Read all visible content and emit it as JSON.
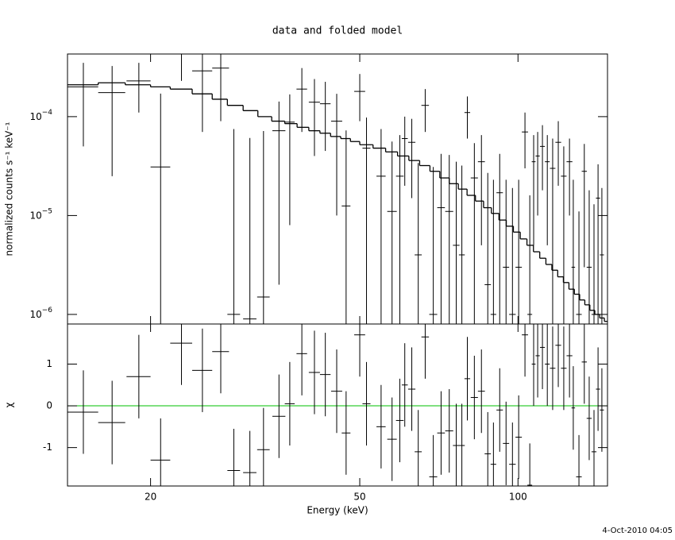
{
  "chart_data": [
    {
      "type": "errorbar",
      "title": "data and folded model",
      "ylabel": "normalized counts s⁻¹ keV⁻¹",
      "xscale": "log",
      "xlim": [
        13.9,
        148
      ],
      "yscale": "log",
      "ylim": [
        8e-07,
        0.00043
      ],
      "yticks": [
        {
          "value": 1e-06,
          "label": "10",
          "exponent": "−6"
        },
        {
          "value": 1e-05,
          "label": "10",
          "exponent": "−5"
        },
        {
          "value": 0.0001,
          "label": "10",
          "exponent": "−4"
        }
      ],
      "series": [
        {
          "color": "#000000",
          "x": [
            14.9,
            16.9,
            19.0,
            20.9,
            22.9,
            25.1,
            27.2,
            28.8,
            30.9,
            32.8,
            35.1,
            36.8,
            38.8,
            41.0,
            43.0,
            45.2,
            47.1,
            50.0,
            51.5,
            54.9,
            57.6,
            59.6,
            60.9,
            62.8,
            64.6,
            66.6,
            69.0,
            71.4,
            74.0,
            76.3,
            78.2,
            80.1,
            82.6,
            85.2,
            87.6,
            89.8,
            92.3,
            94.9,
            97.6,
            100.3,
            103.1,
            105.3,
            107.1,
            109.0,
            111.3,
            113.7,
            116.4,
            119.3,
            122.2,
            125.3,
            127.4,
            130.6,
            133.7,
            136.6,
            139.5,
            142.0,
            144.4
          ],
          "xerr": [
            1.0,
            1.0,
            1.0,
            0.9,
            1.1,
            1.1,
            1.0,
            0.8,
            0.9,
            0.9,
            1.0,
            0.8,
            0.9,
            1.0,
            1.0,
            1.1,
            0.9,
            1.2,
            0.9,
            1.1,
            1.2,
            1.0,
            0.8,
            1.0,
            1.0,
            1.1,
            1.2,
            1.2,
            1.3,
            1.1,
            1.0,
            1.0,
            1.3,
            1.3,
            1.2,
            1.1,
            1.3,
            1.3,
            1.4,
            1.4,
            1.4,
            1.1,
            0.9,
            1.0,
            1.2,
            1.2,
            1.4,
            1.5,
            1.5,
            1.6,
            1.0,
            1.6,
            1.5,
            1.5,
            1.5,
            1.3,
            1.3
          ],
          "values": [
            0.0002,
            0.000175,
            0.00023,
            3.1e-05,
            0.00043,
            0.00029,
            0.00031,
            1e-06,
            9e-07,
            1.5e-06,
            7.2e-05,
            8.8e-05,
            0.00019,
            0.00014,
            0.000135,
            9e-05,
            1.25e-05,
            0.00018,
            4.8e-05,
            2.5e-05,
            1.1e-05,
            2.5e-05,
            6e-05,
            5.5e-05,
            4e-06,
            0.00013,
            1e-06,
            1.2e-05,
            1.1e-05,
            5e-06,
            4e-06,
            0.00011,
            2.4e-05,
            3.5e-05,
            2e-06,
            1e-06,
            1.7e-05,
            3e-06,
            1e-06,
            3e-06,
            7e-05,
            1e-06,
            3.5e-05,
            4e-05,
            5e-05,
            3.5e-05,
            3e-05,
            5.5e-05,
            2.5e-05,
            3.5e-05,
            3e-06,
            1e-06,
            2.8e-05,
            3e-06,
            1e-06,
            1.5e-05,
            4e-06
          ],
          "errors": [
            0.00015,
            0.00015,
            0.00012,
            0.00014,
            0.0002,
            0.00022,
            0.00022,
            7.4e-05,
            6e-05,
            7e-05,
            7e-05,
            8e-05,
            0.00012,
            0.0001,
            9e-05,
            8e-05,
            6e-05,
            9e-05,
            5e-05,
            5e-05,
            4.5e-05,
            4e-05,
            4e-05,
            4e-05,
            3e-05,
            6e-05,
            3e-05,
            3e-05,
            3e-05,
            3e-05,
            2.8e-05,
            5e-05,
            3e-05,
            3e-05,
            2.5e-05,
            2.2e-05,
            2.5e-05,
            2e-05,
            1.8e-05,
            2e-05,
            4e-05,
            1.5e-05,
            3e-05,
            3e-05,
            3.2e-05,
            3e-05,
            3e-05,
            3.5e-05,
            2.5e-05,
            2.5e-05,
            2e-05,
            1e-05,
            2.5e-05,
            1.5e-05,
            1.2e-05,
            1.8e-05,
            1.5e-05
          ]
        }
      ],
      "model": {
        "color": "#000000",
        "bins": [
          13.9,
          15.9,
          17.9,
          20,
          21.8,
          24,
          26.2,
          28,
          30,
          32,
          34,
          36,
          38,
          40,
          42,
          44,
          46,
          48,
          50,
          53,
          56,
          59,
          62,
          65,
          68,
          71,
          74,
          77,
          80,
          83,
          86,
          89,
          92,
          95,
          98,
          101,
          104,
          107,
          110,
          113,
          116,
          119,
          122,
          125,
          128,
          131,
          134,
          137,
          140,
          143,
          146,
          148
        ],
        "values": [
          0.00021,
          0.00022,
          0.00021,
          0.0002,
          0.00019,
          0.00017,
          0.00015,
          0.00013,
          0.000115,
          0.0001,
          9e-05,
          8.5e-05,
          7.8e-05,
          7.2e-05,
          6.8e-05,
          6.3e-05,
          6e-05,
          5.6e-05,
          5.2e-05,
          4.8e-05,
          4.4e-05,
          4e-05,
          3.6e-05,
          3.2e-05,
          2.8e-05,
          2.4e-05,
          2.1e-05,
          1.85e-05,
          1.6e-05,
          1.4e-05,
          1.2e-05,
          1.05e-05,
          9e-06,
          7.8e-06,
          6.8e-06,
          5.8e-06,
          5e-06,
          4.3e-06,
          3.7e-06,
          3.2e-06,
          2.8e-06,
          2.4e-06,
          2.1e-06,
          1.8e-06,
          1.6e-06,
          1.4e-06,
          1.25e-06,
          1.1e-06,
          1e-06,
          9.2e-07,
          8.5e-07
        ]
      }
    },
    {
      "type": "residual",
      "ylabel": "χ",
      "xlabel": "Energy (keV)",
      "xscale": "log",
      "xlim": [
        13.9,
        148
      ],
      "xticks": [
        20,
        50,
        100
      ],
      "ylim": [
        -1.92,
        1.96
      ],
      "yticks": [
        -1,
        0,
        1
      ],
      "zero_line_color": "#00c000",
      "series": [
        {
          "color": "#000000",
          "x": [
            14.9,
            16.9,
            19.0,
            20.9,
            22.9,
            25.1,
            27.2,
            28.8,
            30.9,
            32.8,
            35.1,
            36.8,
            38.8,
            41.0,
            43.0,
            45.2,
            47.1,
            50.0,
            51.5,
            54.9,
            57.6,
            59.6,
            60.9,
            62.8,
            64.6,
            66.6,
            69.0,
            71.4,
            74.0,
            76.3,
            78.2,
            80.1,
            82.6,
            85.2,
            87.6,
            89.8,
            92.3,
            94.9,
            97.6,
            100.3,
            103.1,
            105.3,
            107.1,
            109.0,
            111.3,
            113.7,
            116.4,
            119.3,
            122.2,
            125.3,
            127.4,
            130.6,
            133.7,
            136.6,
            139.5,
            142.0,
            144.4
          ],
          "xerr": [
            1.0,
            1.0,
            1.0,
            0.9,
            1.1,
            1.1,
            1.0,
            0.8,
            0.9,
            0.9,
            1.0,
            0.8,
            0.9,
            1.0,
            1.0,
            1.1,
            0.9,
            1.2,
            0.9,
            1.1,
            1.2,
            1.0,
            0.8,
            1.0,
            1.0,
            1.1,
            1.2,
            1.2,
            1.3,
            1.1,
            1.0,
            1.0,
            1.3,
            1.3,
            1.2,
            1.1,
            1.3,
            1.3,
            1.4,
            1.4,
            1.4,
            1.1,
            0.9,
            1.0,
            1.2,
            1.2,
            1.4,
            1.5,
            1.5,
            1.6,
            1.0,
            1.6,
            1.5,
            1.5,
            1.5,
            1.3,
            1.3
          ],
          "values": [
            -0.15,
            -0.4,
            0.7,
            -1.3,
            1.5,
            0.85,
            1.3,
            -1.55,
            -1.6,
            -1.05,
            -0.25,
            0.05,
            1.25,
            0.8,
            0.75,
            0.35,
            -0.65,
            1.7,
            0.05,
            -0.5,
            -0.8,
            -0.35,
            0.5,
            0.4,
            -1.1,
            1.65,
            -1.7,
            -0.65,
            -0.6,
            -0.95,
            -0.95,
            0.65,
            0.2,
            0.35,
            -1.15,
            -1.4,
            -0.1,
            -0.9,
            -1.4,
            -0.75,
            1.7,
            -1.9,
            1.0,
            1.2,
            1.4,
            1.0,
            0.9,
            1.45,
            0.9,
            1.2,
            -0.05,
            -1.7,
            1.05,
            -0.3,
            -1.1,
            0.4,
            -0.1
          ],
          "errors": [
            1,
            1,
            1,
            1,
            1,
            1,
            1,
            1,
            1,
            1,
            1,
            1,
            1,
            1,
            1,
            1,
            1,
            1,
            1,
            1,
            1,
            1,
            1,
            1,
            1,
            1,
            1,
            1,
            1,
            1,
            1,
            1,
            1,
            1,
            1,
            1,
            1,
            1,
            1,
            1,
            1,
            1,
            1,
            1,
            1,
            1,
            1,
            1,
            1,
            1,
            1,
            1,
            1,
            1,
            1,
            1,
            1
          ]
        }
      ]
    }
  ],
  "timestamp": "4-Oct-2010 04:05"
}
